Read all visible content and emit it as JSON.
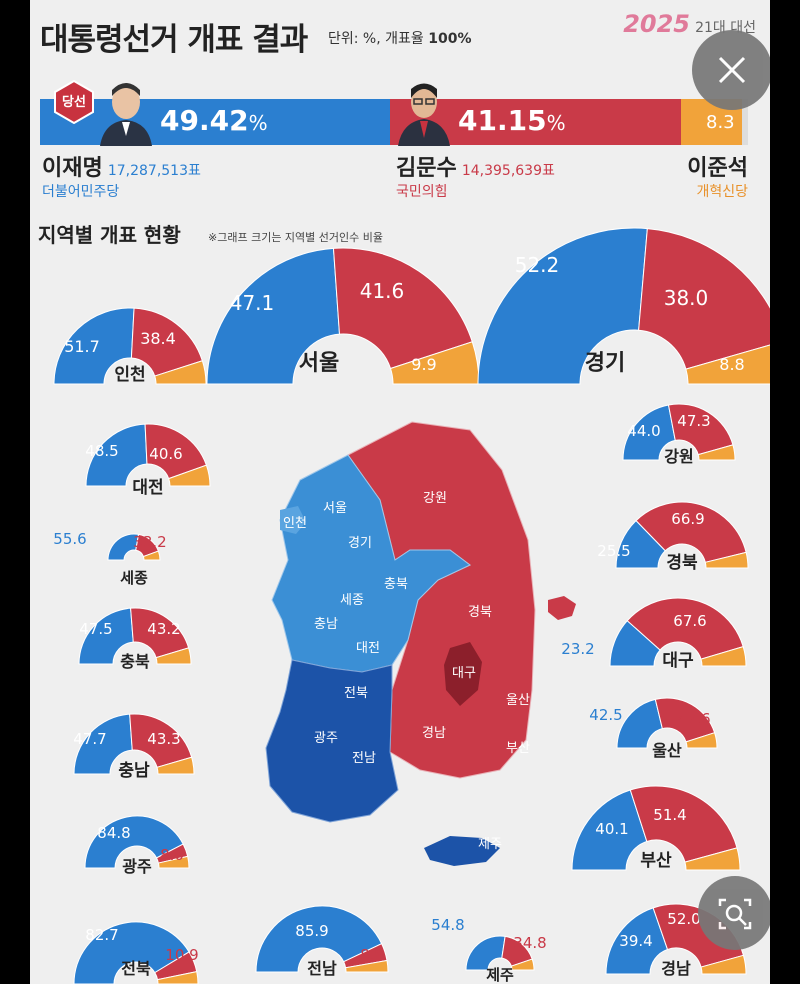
{
  "header": {
    "title": "대통령선거 개표 결과",
    "unit": "단위: %, 개표율",
    "rate": "100%",
    "brand_year": "2025",
    "brand_text": "21대 대선"
  },
  "winner_badge": "당선",
  "candidates": [
    {
      "name": "이재명",
      "votes": "17,287,513표",
      "party": "더불어민주당",
      "percent": "49.42",
      "color": "#2b7fd0"
    },
    {
      "name": "김문수",
      "votes": "14,395,639표",
      "party": "국민의힘",
      "percent": "41.15",
      "color": "#c93a48"
    },
    {
      "name": "이준석",
      "votes": "",
      "party": "개혁신당",
      "percent": "8.3",
      "color": "#f1a33a"
    }
  ],
  "section": {
    "title": "지역별 개표 현황",
    "note": "※그래프 크기는 지역별 선거인수 비율"
  },
  "colors": {
    "blue": "#2b7fd0",
    "red": "#c93a48",
    "orange": "#f1a33a"
  },
  "chart_data": {
    "type": "pie",
    "title": "대통령선거 개표 결과",
    "national": [
      {
        "party": "더불어민주당",
        "value": 49.42
      },
      {
        "party": "국민의힘",
        "value": 41.15
      },
      {
        "party": "개혁신당",
        "value": 8.3
      }
    ],
    "regions": [
      {
        "name": "서울",
        "values": [
          47.1,
          41.6,
          9.9
        ]
      },
      {
        "name": "경기",
        "values": [
          52.2,
          38.0,
          8.8
        ]
      },
      {
        "name": "인천",
        "values": [
          51.7,
          38.4,
          null
        ]
      },
      {
        "name": "대전",
        "values": [
          48.5,
          40.6,
          null
        ]
      },
      {
        "name": "세종",
        "values": [
          55.6,
          33.2,
          null
        ]
      },
      {
        "name": "충북",
        "values": [
          47.5,
          43.2,
          null
        ]
      },
      {
        "name": "충남",
        "values": [
          47.7,
          43.3,
          null
        ]
      },
      {
        "name": "광주",
        "values": [
          84.8,
          8.0,
          null
        ]
      },
      {
        "name": "전북",
        "values": [
          82.7,
          10.9,
          null
        ]
      },
      {
        "name": "전남",
        "values": [
          85.9,
          8.5,
          null
        ]
      },
      {
        "name": "제주",
        "values": [
          54.8,
          34.8,
          null
        ]
      },
      {
        "name": "강원",
        "values": [
          44.0,
          47.3,
          null
        ]
      },
      {
        "name": "경북",
        "values": [
          25.5,
          66.9,
          null
        ]
      },
      {
        "name": "대구",
        "values": [
          23.2,
          67.6,
          null
        ]
      },
      {
        "name": "울산",
        "values": [
          42.5,
          47.6,
          null
        ]
      },
      {
        "name": "부산",
        "values": [
          40.1,
          51.4,
          null
        ]
      },
      {
        "name": "경남",
        "values": [
          39.4,
          52.0,
          null
        ]
      }
    ]
  },
  "map": {
    "labels": [
      "서울",
      "인천",
      "경기",
      "강원",
      "충북",
      "세종",
      "충남",
      "대전",
      "경북",
      "대구",
      "전북",
      "울산",
      "광주",
      "경남",
      "전남",
      "부산",
      "제주"
    ]
  }
}
